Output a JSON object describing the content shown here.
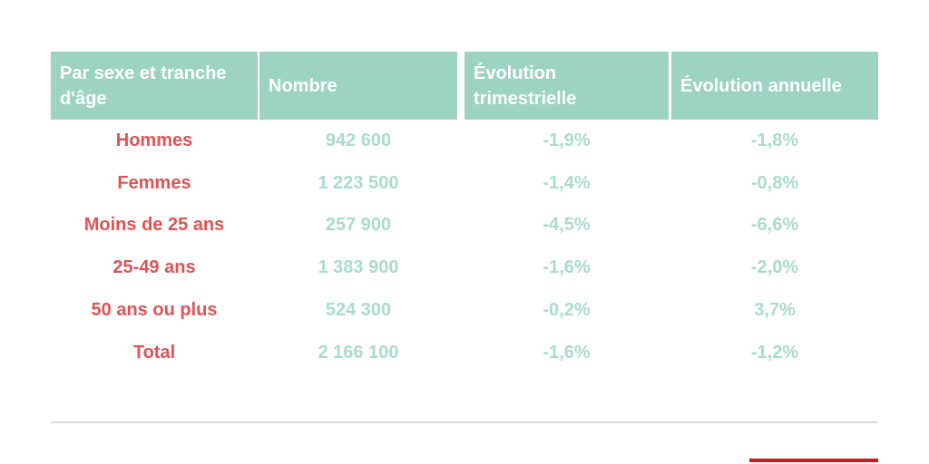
{
  "colors": {
    "header_background": "#9cd3c3",
    "header_text": "#ffffff",
    "row_label_red": "#e05354",
    "value_teal": "#a9dccb",
    "divider_gray": "#dcdcdc",
    "bottom_bar_red": "#c4201f"
  },
  "table": {
    "columns": [
      {
        "label": "Par sexe et tranche d'âge"
      },
      {
        "label": "Nombre"
      },
      {
        "label": "Évolution trimestrielle"
      },
      {
        "label": "Évolution annuelle"
      }
    ],
    "rows": [
      {
        "cells": [
          "Hommes",
          "942 600",
          "-1,9%",
          "-1,8%"
        ]
      },
      {
        "cells": [
          "Femmes",
          "1 223 500",
          "-1,4%",
          "-0,8%"
        ]
      },
      {
        "cells": [
          "Moins de 25 ans",
          "257 900",
          "-4,5%",
          "-6,6%"
        ]
      },
      {
        "cells": [
          "25-49 ans",
          "1 383 900",
          "-1,6%",
          "-2,0%"
        ]
      },
      {
        "cells": [
          "50 ans ou plus",
          "524 300",
          "-0,2%",
          "3,7%"
        ]
      },
      {
        "cells": [
          "Total",
          "2 166 100",
          "-1,6%",
          "-1,2%"
        ]
      }
    ]
  },
  "chart_data": {
    "type": "table",
    "title": "",
    "columns": [
      "Par sexe et tranche d'âge",
      "Nombre",
      "Évolution trimestrielle",
      "Évolution annuelle"
    ],
    "categories": [
      "Hommes",
      "Femmes",
      "Moins de 25 ans",
      "25-49 ans",
      "50 ans ou plus",
      "Total"
    ],
    "series": [
      {
        "name": "Nombre",
        "values": [
          942600,
          1223500,
          257900,
          1383900,
          524300,
          2166100
        ]
      },
      {
        "name": "Évolution trimestrielle (%)",
        "values": [
          -1.9,
          -1.4,
          -4.5,
          -1.6,
          -0.2,
          -1.6
        ]
      },
      {
        "name": "Évolution annuelle (%)",
        "values": [
          -1.8,
          -0.8,
          -6.6,
          -2.0,
          3.7,
          -1.2
        ]
      }
    ],
    "layout_hints": {
      "header_fill": "#9cd3c3",
      "category_text_color": "#e05354",
      "value_text_color": "#a9dccb",
      "number_format": "fr-FR (space thousands separator, comma decimal)"
    }
  }
}
